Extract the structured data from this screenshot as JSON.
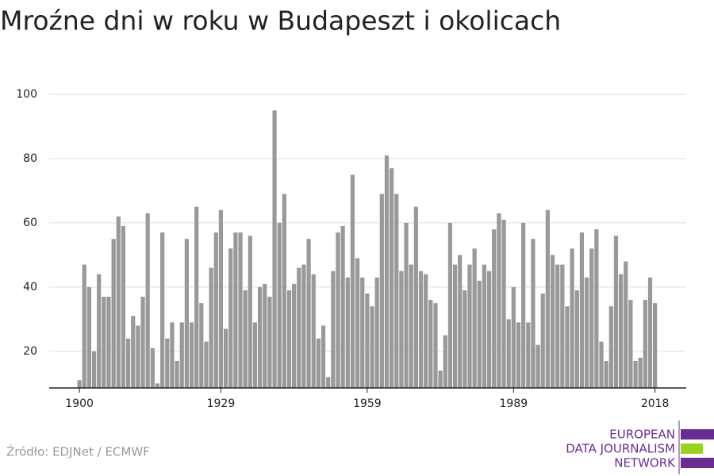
{
  "chart_data": {
    "type": "bar",
    "title": "Mroźne dni w roku w Budapeszt i okolicach",
    "source": "Źródło: EDJNet / ECMWF",
    "logo": [
      "EUROPEAN",
      "DATA JOURNALISM",
      "NETWORK"
    ],
    "x": [
      1900,
      1901,
      1902,
      1903,
      1904,
      1905,
      1906,
      1907,
      1908,
      1909,
      1910,
      1911,
      1912,
      1913,
      1914,
      1915,
      1916,
      1917,
      1918,
      1919,
      1920,
      1921,
      1922,
      1923,
      1924,
      1925,
      1926,
      1927,
      1928,
      1929,
      1930,
      1931,
      1932,
      1933,
      1934,
      1935,
      1936,
      1937,
      1938,
      1939,
      1940,
      1941,
      1942,
      1943,
      1944,
      1945,
      1946,
      1947,
      1948,
      1949,
      1950,
      1951,
      1952,
      1953,
      1954,
      1955,
      1956,
      1957,
      1958,
      1959,
      1960,
      1961,
      1962,
      1963,
      1964,
      1965,
      1966,
      1967,
      1968,
      1969,
      1970,
      1971,
      1972,
      1973,
      1974,
      1975,
      1976,
      1977,
      1978,
      1979,
      1980,
      1981,
      1982,
      1983,
      1984,
      1985,
      1986,
      1987,
      1988,
      1989,
      1990,
      1991,
      1992,
      1993,
      1994,
      1995,
      1996,
      1997,
      1998,
      1999,
      2000,
      2001,
      2002,
      2003,
      2004,
      2005,
      2006,
      2007,
      2008,
      2009,
      2010,
      2011,
      2012,
      2013,
      2014,
      2015,
      2016,
      2017,
      2018
    ],
    "values": [
      11,
      47,
      40,
      20,
      44,
      37,
      37,
      55,
      62,
      59,
      24,
      31,
      28,
      37,
      63,
      21,
      10,
      57,
      24,
      29,
      17,
      29,
      55,
      29,
      65,
      35,
      23,
      46,
      57,
      64,
      27,
      52,
      57,
      57,
      39,
      56,
      29,
      40,
      41,
      37,
      95,
      60,
      69,
      39,
      41,
      46,
      47,
      55,
      44,
      24,
      28,
      12,
      45,
      57,
      59,
      43,
      75,
      49,
      43,
      38,
      34,
      43,
      69,
      81,
      77,
      69,
      45,
      60,
      47,
      65,
      45,
      44,
      36,
      35,
      14,
      25,
      60,
      47,
      50,
      39,
      47,
      52,
      42,
      47,
      45,
      58,
      63,
      61,
      30,
      40,
      29,
      60,
      29,
      55,
      22,
      38,
      64,
      50,
      47,
      47,
      34,
      52,
      39,
      57,
      43,
      52,
      58,
      23,
      17,
      34,
      56,
      44,
      48,
      36,
      17,
      18,
      36,
      43,
      35
    ],
    "color": "#999999",
    "xlim": [
      1893.8,
      2024.4
    ],
    "xticks": [
      1900,
      1929,
      1959,
      1989,
      2018
    ],
    "ylim": [
      8.6,
      100
    ],
    "yticks": [
      20,
      40,
      60,
      80,
      100
    ],
    "grid": true
  }
}
